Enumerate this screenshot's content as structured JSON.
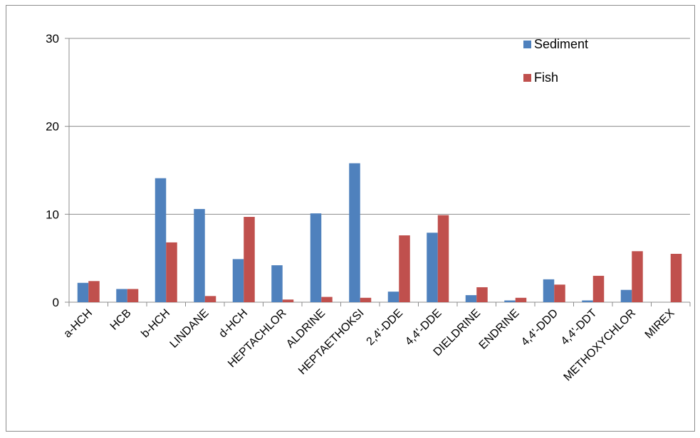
{
  "chart_data": {
    "type": "bar",
    "title": "",
    "xlabel": "",
    "ylabel": "",
    "ylim": [
      0,
      30
    ],
    "yticks": [
      0,
      10,
      20,
      30
    ],
    "grid": "horizontal",
    "legend_position": "top-right",
    "categories": [
      "a-HCH",
      "HCB",
      "b-HCH",
      "LINDANE",
      "d-HCH",
      "HEPTACHLOR",
      "ALDRINE",
      "HEPTAETHOKSI",
      "2,4'-DDE",
      "4,4'-DDE",
      "DIELDRINE",
      "ENDRINE",
      "4,4'-DDD",
      "4,4'-DDT",
      "METHOXYCHLOR",
      "MIREX"
    ],
    "series": [
      {
        "name": "Sediment",
        "color": "#4f81bd",
        "values": [
          2.2,
          1.5,
          14.1,
          10.6,
          4.9,
          4.2,
          10.1,
          15.8,
          1.2,
          7.9,
          0.8,
          0.2,
          2.6,
          0.2,
          1.4,
          0
        ]
      },
      {
        "name": "Fish",
        "color": "#c0504d",
        "values": [
          2.4,
          1.5,
          6.8,
          0.7,
          9.7,
          0.3,
          0.6,
          0.5,
          7.6,
          9.9,
          1.7,
          0.5,
          2.0,
          3.0,
          5.8,
          5.5
        ]
      }
    ]
  }
}
